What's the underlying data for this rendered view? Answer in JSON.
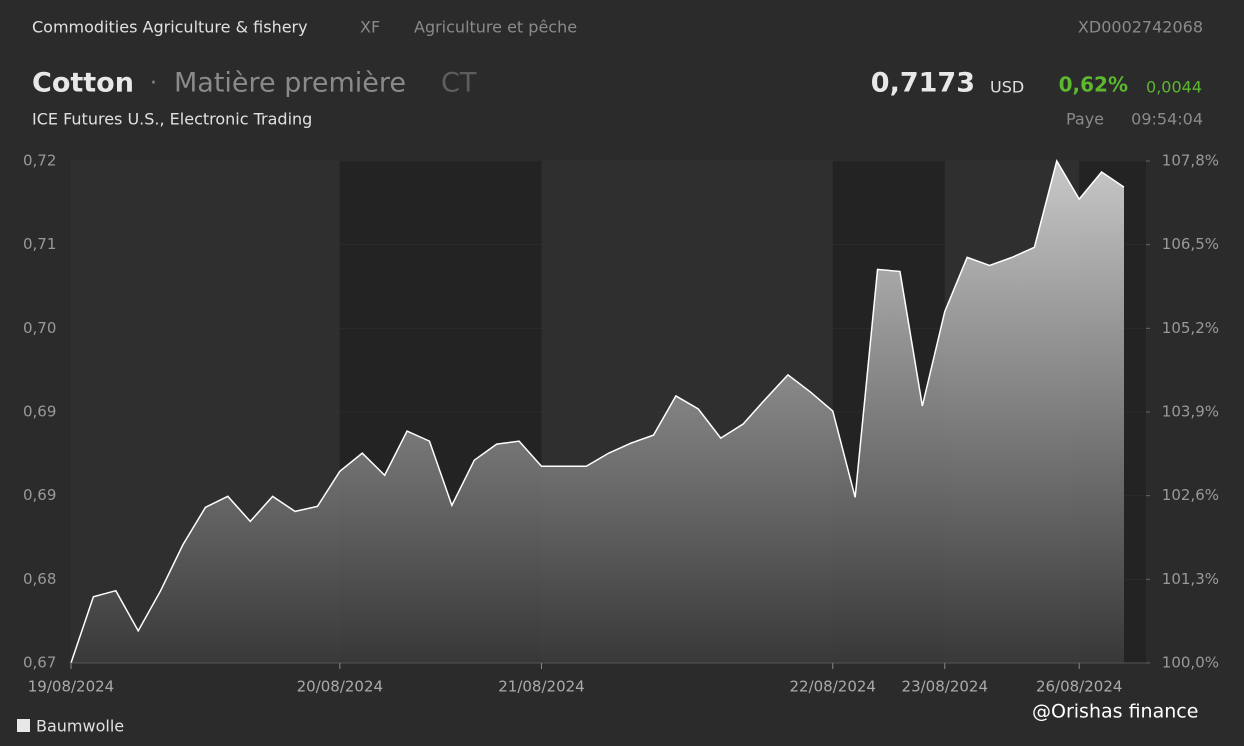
{
  "header": {
    "category": "Commodities Agriculture & fishery",
    "code": "XF",
    "category_fr": "Agriculture et pêche",
    "isin": "XD0002742068",
    "name": "Cotton",
    "separator": "·",
    "kind": "Matière première",
    "symbol": "CT",
    "exchange": "ICE Futures U.S., Electronic Trading",
    "price": "0,7173",
    "currency": "USD",
    "change_pct": "0,62%",
    "change": "0,0044",
    "status": "Paye",
    "time": "09:54:04"
  },
  "watermark": "@Orishas finance",
  "chart_data": {
    "type": "area",
    "categories": [
      "19/08/2024",
      null,
      null,
      null,
      null,
      null,
      null,
      null,
      null,
      null,
      null,
      null,
      "20/08/2024",
      null,
      null,
      null,
      null,
      null,
      null,
      null,
      null,
      "21/08/2024",
      null,
      null,
      null,
      null,
      null,
      null,
      null,
      null,
      null,
      null,
      null,
      null,
      "22/08/2024",
      null,
      null,
      null,
      null,
      "23/08/2024",
      null,
      null,
      null,
      null,
      null,
      "26/08/2024",
      null,
      null
    ],
    "series": [
      {
        "name": "Baumwolle",
        "color": "#ffffff",
        "values": [
          0.67,
          0.6766,
          0.6772,
          0.6732,
          0.6772,
          0.6818,
          0.6855,
          0.6866,
          0.6841,
          0.6866,
          0.6851,
          0.6856,
          0.6891,
          0.6909,
          0.6887,
          0.6931,
          0.6921,
          0.6857,
          0.6902,
          0.6918,
          0.6921,
          0.6896,
          0.6896,
          0.6896,
          0.6909,
          0.6919,
          0.6927,
          0.6966,
          0.6953,
          0.6924,
          0.6938,
          0.6963,
          0.6987,
          0.697,
          0.6951,
          0.6865,
          0.7092,
          0.709,
          0.6956,
          0.705,
          0.7104,
          0.7096,
          0.7104,
          0.7114,
          0.72,
          0.7162,
          0.7189,
          0.7174
        ]
      }
    ],
    "ylim": [
      0.67,
      0.72
    ],
    "yticks": [
      {
        "value": 0.72,
        "label": "0,72"
      },
      {
        "value": 0.7117,
        "label": "0,71"
      },
      {
        "value": 0.7033,
        "label": "0,70"
      },
      {
        "value": 0.695,
        "label": "0,69"
      },
      {
        "value": 0.6867,
        "label": "0,69"
      },
      {
        "value": 0.6783,
        "label": "0,68"
      },
      {
        "value": 0.67,
        "label": "0,67"
      }
    ],
    "y2lim": [
      100,
      107.8
    ],
    "y2ticks": [
      {
        "value": 107.8,
        "label": "107,8%"
      },
      {
        "value": 106.5,
        "label": "106,5%"
      },
      {
        "value": 105.2,
        "label": "105,2%"
      },
      {
        "value": 103.9,
        "label": "103,9%"
      },
      {
        "value": 102.6,
        "label": "102,6%"
      },
      {
        "value": 101.3,
        "label": "101,3%"
      },
      {
        "value": 100,
        "label": "100,0%"
      }
    ],
    "legend": "bottom-left"
  }
}
